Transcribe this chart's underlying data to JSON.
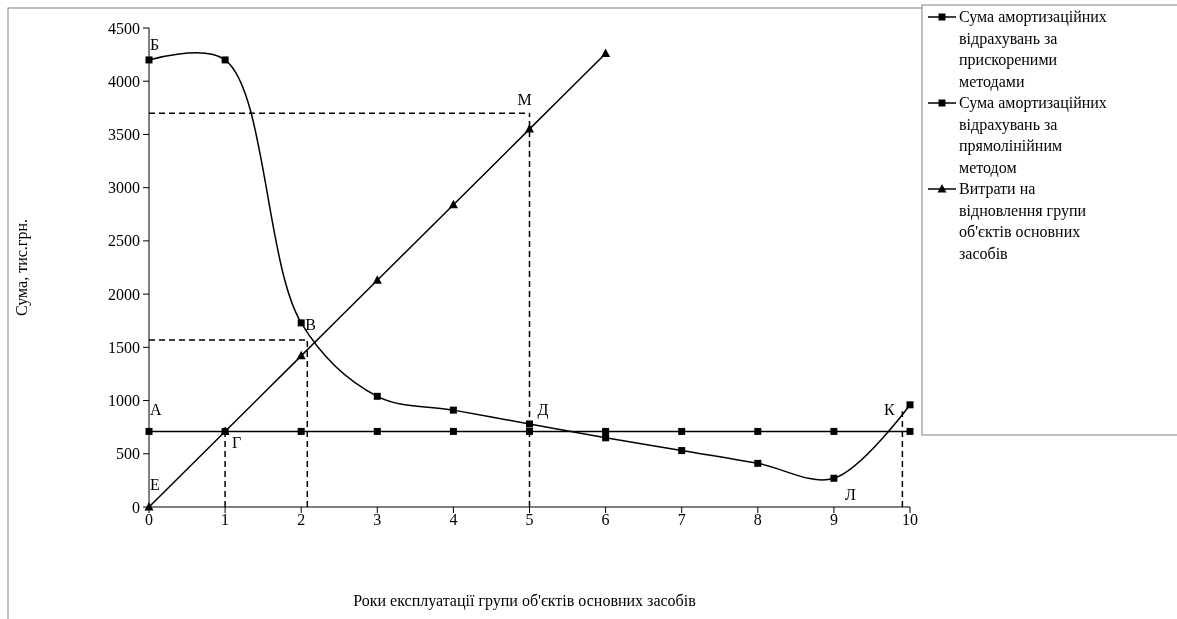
{
  "chart_data": {
    "type": "line",
    "xlabel": "Роки експлуатації групи об'єктів основних засобів",
    "ylabel": "Сума, тис.грн.",
    "xlim": [
      0,
      10
    ],
    "xticks": [
      0,
      1,
      2,
      3,
      4,
      5,
      6,
      7,
      8,
      9,
      10
    ],
    "ylim": [
      0,
      4500
    ],
    "yticks": [
      0,
      500,
      1000,
      1500,
      2000,
      2500,
      3000,
      3500,
      4000,
      4500
    ],
    "grid": false,
    "legend": "right",
    "series": [
      {
        "name": "Сума амортизаційних відрахувань за прискореними методами",
        "color": "#000000",
        "marker": "square",
        "x": [
          0,
          1,
          2,
          3,
          4,
          5,
          6,
          7,
          8,
          9,
          10
        ],
        "values": [
          4200,
          4200,
          1730,
          1040,
          910,
          780,
          650,
          530,
          410,
          270,
          960
        ]
      },
      {
        "name": "Сума амортизаційних відрахувань за прямолінійним методом",
        "color": "#000000",
        "marker": "square",
        "x": [
          0,
          1,
          2,
          3,
          4,
          5,
          6,
          7,
          8,
          9,
          10
        ],
        "values": [
          710,
          710,
          710,
          710,
          710,
          710,
          710,
          710,
          710,
          710,
          710
        ]
      },
      {
        "name": "Витрати на відновлення групи об'єктів основних засобів",
        "color": "#000000",
        "marker": "triangle",
        "x": [
          0,
          1,
          2,
          3,
          4,
          5,
          6
        ],
        "values": [
          0,
          710,
          1420,
          2130,
          2840,
          3550,
          4260
        ]
      },
      {
        "color": "#000000",
        "marker": "none",
        "line_style": "dashed",
        "x": [
          0,
          5
        ],
        "values": [
          3700,
          3700
        ]
      },
      {
        "color": "#000000",
        "marker": "none",
        "line_style": "dashed",
        "x": [
          5,
          5
        ],
        "values": [
          0,
          3700
        ]
      },
      {
        "color": "#000000",
        "marker": "none",
        "line_style": "dashed",
        "x": [
          0,
          2.08
        ],
        "values": [
          1570,
          1570
        ]
      },
      {
        "color": "#000000",
        "marker": "none",
        "line_style": "dashed",
        "x": [
          2.08,
          2.08
        ],
        "values": [
          0,
          1570
        ]
      },
      {
        "color": "#000000",
        "marker": "none",
        "line_style": "dashed",
        "x": [
          1,
          1
        ],
        "values": [
          0,
          710
        ]
      },
      {
        "color": "#000000",
        "marker": "none",
        "line_style": "dashed",
        "x": [
          9.9,
          9.9
        ],
        "values": [
          0,
          900
        ]
      }
    ],
    "annotations": [
      {
        "text": "Б",
        "x": 0,
        "y": 4200
      },
      {
        "text": "М",
        "x": 5,
        "y": 3700
      },
      {
        "text": "В",
        "x": 2,
        "y": 1730
      },
      {
        "text": "А",
        "x": 0,
        "y": 710
      },
      {
        "text": "Г",
        "x": 1,
        "y": 710
      },
      {
        "text": "Д",
        "x": 5,
        "y": 780
      },
      {
        "text": "Е",
        "x": 0,
        "y": 0
      },
      {
        "text": "К",
        "x": 10,
        "y": 960
      },
      {
        "text": "Л",
        "x": 9,
        "y": 270
      }
    ]
  }
}
